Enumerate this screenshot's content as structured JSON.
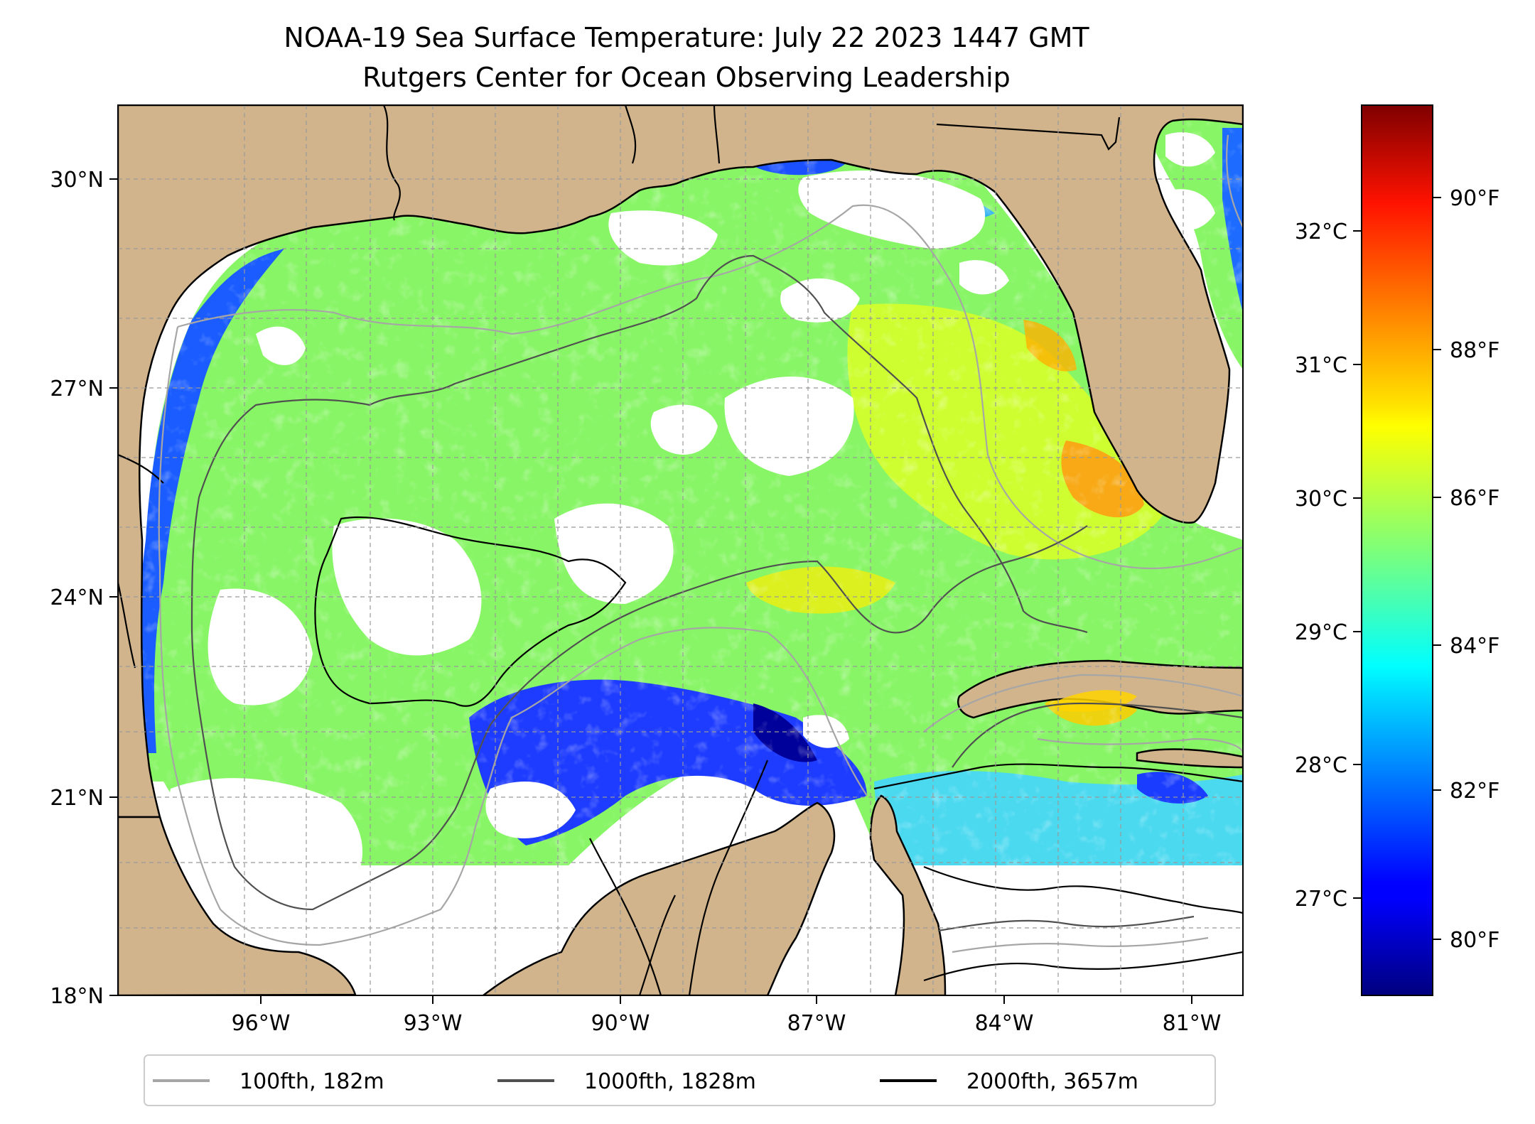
{
  "title": {
    "line1": "NOAA-19 Sea Surface Temperature: July 22 2023 1447 GMT",
    "line2": "Rutgers Center for Ocean Observing Leadership"
  },
  "map": {
    "lat_ticks": [
      "30°N",
      "27°N",
      "24°N",
      "21°N",
      "18°N"
    ],
    "lon_ticks": [
      "96°W",
      "93°W",
      "90°W",
      "87°W",
      "84°W",
      "81°W"
    ],
    "extent": {
      "lon": [
        -98.3,
        -80.3
      ],
      "lat": [
        18,
        30.8
      ]
    },
    "land_color": "#d2b48c",
    "cloud_color": "#ffffff",
    "gridlines": true
  },
  "colorbar": {
    "celsius_ticks": [
      "32°C",
      "31°C",
      "30°C",
      "29°C",
      "28°C",
      "27°C"
    ],
    "fahrenheit_ticks": [
      "90°F",
      "88°F",
      "86°F",
      "84°F",
      "82°F",
      "80°F"
    ],
    "colormap": "jet",
    "range_f": [
      79.2,
      91.4
    ]
  },
  "legend": {
    "items": [
      {
        "label": "100fth, 182m",
        "color": "#a6a6a6"
      },
      {
        "label": "1000fth, 1828m",
        "color": "#505050"
      },
      {
        "label": "2000fth, 3657m",
        "color": "#000000"
      }
    ]
  }
}
